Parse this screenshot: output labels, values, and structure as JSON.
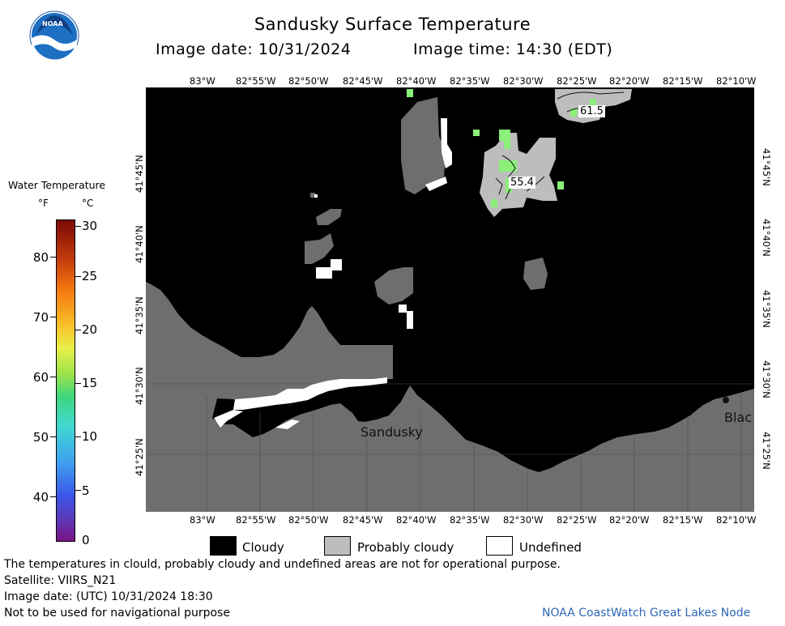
{
  "header": {
    "title": "Sandusky Surface Temperature",
    "image_date": "Image date: 10/31/2024",
    "image_time": "Image time: 14:30 (EDT)"
  },
  "logo": {
    "text": "NOAA",
    "icon": "noaa-logo-icon"
  },
  "map": {
    "top_lon_labels": [
      "83°W",
      "82°55'W",
      "82°50'W",
      "82°45'W",
      "82°40'W",
      "82°35'W",
      "82°30'W",
      "82°25'W",
      "82°20'W",
      "82°15'W",
      "82°10'W"
    ],
    "bottom_lon_labels": [
      "83°W",
      "82°55'W",
      "82°50'W",
      "82°45'W",
      "82°40'W",
      "82°35'W",
      "82°30'W",
      "82°25'W",
      "82°20'W",
      "82°15'W",
      "82°10'W"
    ],
    "lat_labels": [
      "41°45'N",
      "41°40'N",
      "41°35'N",
      "41°30'N",
      "41°25'N"
    ],
    "place_labels": {
      "sandusky": "Sandusky",
      "blac": "Blac"
    },
    "temp_labels": {
      "t1": "61.5",
      "t2": "55.4"
    },
    "colors": {
      "cloudy": "#000000",
      "probably_cloudy": "#bdbdbd",
      "land": "#6e6e6e",
      "undefined": "#ffffff",
      "warm_pixels": "#8af07a"
    }
  },
  "legend": {
    "title": "Water Temperature",
    "unit_f": "°F",
    "unit_c": "°C",
    "f_ticks": [
      "80",
      "70",
      "60",
      "50",
      "40"
    ],
    "c_ticks": [
      "30",
      "25",
      "20",
      "15",
      "10",
      "5",
      "0"
    ]
  },
  "key": {
    "cloudy": "Cloudy",
    "probably_cloudy": "Probably cloudy",
    "undefined": "Undefined"
  },
  "footer": {
    "line1": "The temperatures in clould, probably cloudy and undefined areas are not for operational purpose.",
    "line2": "Satellite: VIIRS_N21",
    "line3": "Image date: (UTC) 10/31/2024  18:30",
    "line4": "Not to be used for navigational purpose",
    "credit": "NOAA CoastWatch Great Lakes Node"
  }
}
